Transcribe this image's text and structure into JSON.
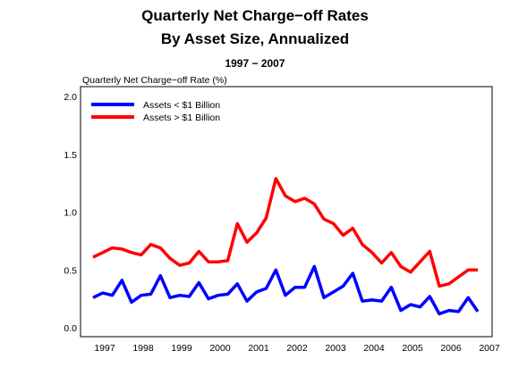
{
  "chart_data": {
    "type": "line",
    "title": "Quarterly Net Charge−off Rates",
    "subtitle": "By Asset Size, Annualized",
    "subtitle2": "1997 − 2007",
    "ylabel": "Quarterly Net Charge−off Rate (%)",
    "ylim": [
      0,
      2.0
    ],
    "yticks": [
      "0.0",
      "0.5",
      "1.0",
      "1.5",
      "2.0"
    ],
    "xticks": [
      "1997",
      "1998",
      "1999",
      "2000",
      "2001",
      "2002",
      "2003",
      "2004",
      "2005",
      "2006",
      "2007"
    ],
    "legend_position": "top-left",
    "grid": false,
    "series": [
      {
        "name": "Assets < $1 Billion",
        "color": "#0000ff",
        "values": [
          0.26,
          0.3,
          0.28,
          0.41,
          0.22,
          0.28,
          0.29,
          0.45,
          0.26,
          0.28,
          0.27,
          0.39,
          0.25,
          0.28,
          0.29,
          0.38,
          0.23,
          0.31,
          0.34,
          0.5,
          0.28,
          0.35,
          0.35,
          0.53,
          0.26,
          0.31,
          0.36,
          0.47,
          0.23,
          0.24,
          0.23,
          0.35,
          0.15,
          0.2,
          0.18,
          0.27,
          0.12,
          0.15,
          0.14,
          0.26,
          0.14
        ]
      },
      {
        "name": "Assets > $1 Billion",
        "color": "#ff0000",
        "values": [
          0.61,
          0.65,
          0.69,
          0.68,
          0.65,
          0.63,
          0.72,
          0.69,
          0.6,
          0.54,
          0.56,
          0.66,
          0.57,
          0.57,
          0.58,
          0.9,
          0.74,
          0.82,
          0.95,
          1.29,
          1.14,
          1.09,
          1.12,
          1.07,
          0.94,
          0.9,
          0.8,
          0.86,
          0.72,
          0.65,
          0.56,
          0.65,
          0.53,
          0.48,
          0.57,
          0.66,
          0.36,
          0.38,
          0.44,
          0.5,
          0.5
        ]
      }
    ]
  }
}
